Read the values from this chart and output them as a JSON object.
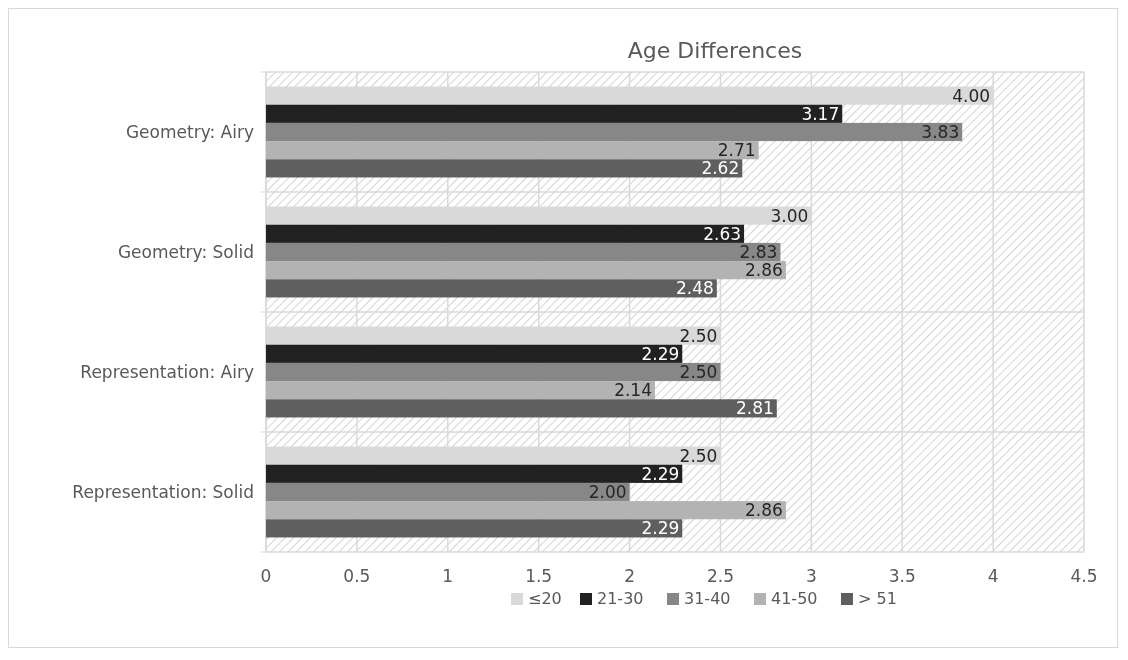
{
  "chart_data": {
    "type": "bar",
    "orientation": "horizontal",
    "title": "Age Differences",
    "categories": [
      "Geometry: Airy",
      "Geometry: Solid",
      "Representation: Airy",
      "Representation: Solid"
    ],
    "series": [
      {
        "name": "≤20",
        "color": "#d9d9d9",
        "values": [
          4.0,
          3.0,
          2.5,
          2.5
        ],
        "value_labels": [
          "4.00",
          "3.00",
          "2.50",
          "2.50"
        ]
      },
      {
        "name": "21-30",
        "color": "#212121",
        "values": [
          3.17,
          2.63,
          2.29,
          2.29
        ],
        "value_labels": [
          "3.17",
          "2.63",
          "2.29",
          "2.29"
        ]
      },
      {
        "name": "31-40",
        "color": "#878787",
        "values": [
          3.83,
          2.83,
          2.5,
          2.0
        ],
        "value_labels": [
          "3.83",
          "2.83",
          "2.50",
          "2.00"
        ]
      },
      {
        "name": "41-50",
        "color": "#b3b3b3",
        "values": [
          2.71,
          2.86,
          2.14,
          2.86
        ],
        "value_labels": [
          "2.71",
          "2.86",
          "2.14",
          "2.86"
        ]
      },
      {
        "name": "> 51",
        "color": "#5f5f5f",
        "values": [
          2.62,
          2.48,
          2.81,
          2.29
        ],
        "value_labels": [
          "2.62",
          "2.48",
          "2.81",
          "2.29"
        ]
      }
    ],
    "xlim": [
      0,
      4.5
    ],
    "xticks": [
      0,
      0.5,
      1,
      1.5,
      2,
      2.5,
      3,
      3.5,
      4,
      4.5
    ],
    "grid": true,
    "legend": "bottom"
  }
}
